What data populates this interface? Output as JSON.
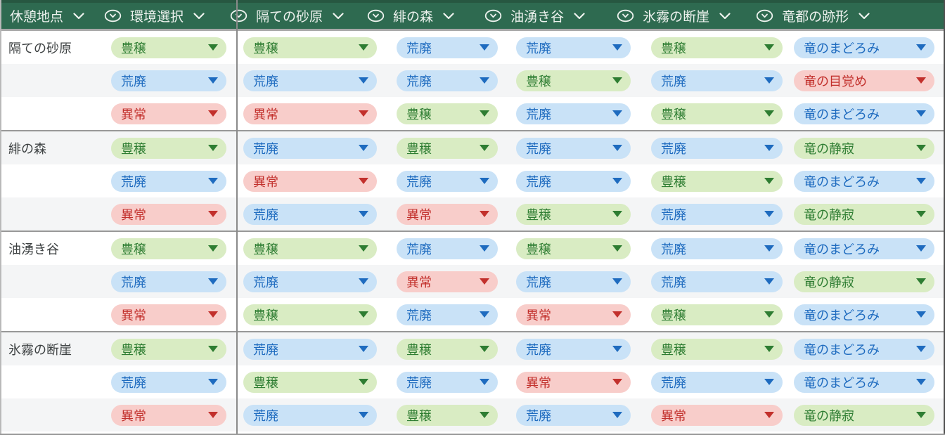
{
  "header": {
    "rest_point": {
      "label": "休憩地点"
    },
    "columns": [
      {
        "label": "環境選択"
      },
      {
        "label": "隔ての砂原"
      },
      {
        "label": "緋の森"
      },
      {
        "label": "油湧き谷"
      },
      {
        "label": "氷霧の断崖"
      },
      {
        "label": "竜都の跡形"
      }
    ]
  },
  "colors": {
    "header_bg": "#2e6a50",
    "header_text": "#edf2ee",
    "row_alt_bg": "#f4f5f6",
    "green_bg": "#d9ecc3",
    "green_text": "#2e7d32",
    "blue_bg": "#c9e2f7",
    "blue_text": "#1e6bbf",
    "red_bg": "#f8cdca",
    "red_text": "#c2302c"
  },
  "value_styles": {
    "豊穣": "green",
    "荒廃": "blue",
    "異常": "red",
    "竜のまどろみ": "blue",
    "竜の目覚め": "red",
    "竜の静寂": "green"
  },
  "groups": [
    {
      "area": "隔ての砂原",
      "rows": [
        {
          "env": "豊穣",
          "cells": [
            "豊穣",
            "荒廃",
            "荒廃",
            "豊穣"
          ],
          "dragon": "竜のまどろみ"
        },
        {
          "env": "荒廃",
          "cells": [
            "荒廃",
            "荒廃",
            "豊穣",
            "荒廃"
          ],
          "dragon": "竜の目覚め"
        },
        {
          "env": "異常",
          "cells": [
            "異常",
            "豊穣",
            "荒廃",
            "豊穣"
          ],
          "dragon": "竜のまどろみ"
        }
      ]
    },
    {
      "area": "緋の森",
      "rows": [
        {
          "env": "豊穣",
          "cells": [
            "荒廃",
            "豊穣",
            "荒廃",
            "荒廃"
          ],
          "dragon": "竜の静寂"
        },
        {
          "env": "荒廃",
          "cells": [
            "異常",
            "荒廃",
            "荒廃",
            "豊穣"
          ],
          "dragon": "竜のまどろみ"
        },
        {
          "env": "異常",
          "cells": [
            "荒廃",
            "異常",
            "豊穣",
            "荒廃"
          ],
          "dragon": "竜の静寂"
        }
      ]
    },
    {
      "area": "油湧き谷",
      "rows": [
        {
          "env": "豊穣",
          "cells": [
            "豊穣",
            "荒廃",
            "豊穣",
            "荒廃"
          ],
          "dragon": "竜のまどろみ"
        },
        {
          "env": "荒廃",
          "cells": [
            "荒廃",
            "異常",
            "荒廃",
            "荒廃"
          ],
          "dragon": "竜の静寂"
        },
        {
          "env": "異常",
          "cells": [
            "豊穣",
            "荒廃",
            "異常",
            "豊穣"
          ],
          "dragon": "竜のまどろみ"
        }
      ]
    },
    {
      "area": "氷霧の断崖",
      "rows": [
        {
          "env": "豊穣",
          "cells": [
            "荒廃",
            "豊穣",
            "荒廃",
            "豊穣"
          ],
          "dragon": "竜のまどろみ"
        },
        {
          "env": "荒廃",
          "cells": [
            "豊穣",
            "荒廃",
            "異常",
            "荒廃"
          ],
          "dragon": "竜のまどろみ"
        },
        {
          "env": "異常",
          "cells": [
            "荒廃",
            "豊穣",
            "荒廃",
            "異常"
          ],
          "dragon": "竜の静寂"
        }
      ]
    }
  ]
}
